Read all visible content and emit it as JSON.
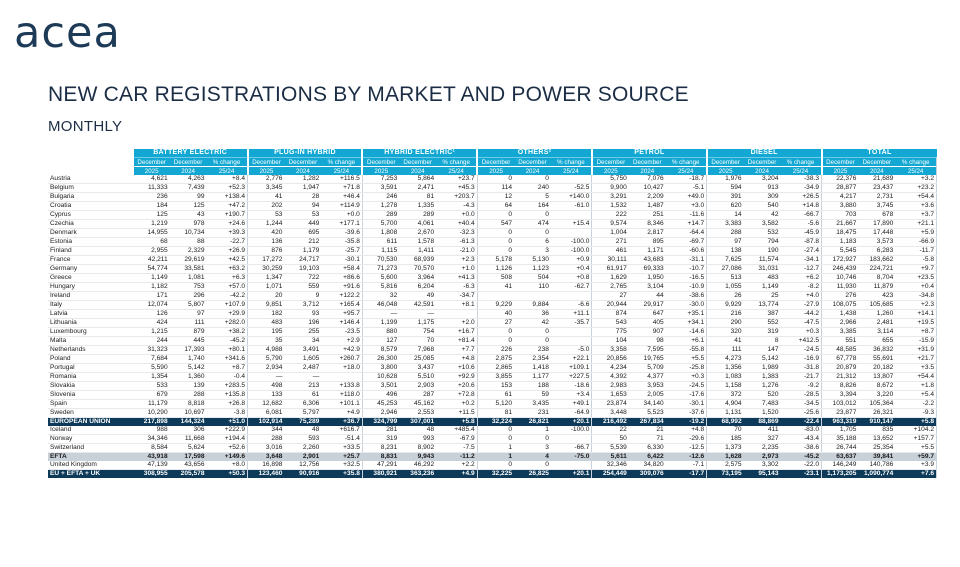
{
  "header": {
    "logo_text": "acea",
    "title": "NEW CAR REGISTRATIONS BY MARKET AND POWER SOURCE",
    "subtitle": "MONTHLY"
  },
  "colors": {
    "header_blue": "#12a8d3",
    "navy": "#0d3a58",
    "efta_grey": "#c8d0d8"
  },
  "groups": [
    {
      "label": "BATTERY ELECTRIC"
    },
    {
      "label": "PLUG-IN HYBRID"
    },
    {
      "label": "HYBRID ELECTRIC¹"
    },
    {
      "label": "OTHERS²"
    },
    {
      "label": "PETROL"
    },
    {
      "label": "DIESEL"
    },
    {
      "label": "TOTAL"
    }
  ],
  "subheaders": {
    "month": "December",
    "pct": "% change",
    "y1": "2025",
    "y2": "2024",
    "range": "25/24"
  },
  "rows": [
    {
      "country": "Austria",
      "v": [
        "4,621",
        "4,263",
        "+8.4",
        "2,776",
        "1,282",
        "+116.5",
        "7,253",
        "5,864",
        "+23.7",
        "0",
        "0",
        "",
        "5,750",
        "7,076",
        "-18.7",
        "1,976",
        "3,204",
        "-38.3",
        "22,376",
        "21,689",
        "+3.2"
      ]
    },
    {
      "country": "Belgium",
      "v": [
        "11,333",
        "7,439",
        "+52.3",
        "3,345",
        "1,947",
        "+71.8",
        "3,591",
        "2,471",
        "+45.3",
        "114",
        "240",
        "-52.5",
        "9,900",
        "10,427",
        "-5.1",
        "594",
        "913",
        "-34.9",
        "28,877",
        "23,437",
        "+23.2"
      ]
    },
    {
      "country": "Bulgaria",
      "v": [
        "236",
        "99",
        "+138.4",
        "41",
        "28",
        "+46.4",
        "246",
        "81",
        "+203.7",
        "12",
        "5",
        "+140.0",
        "3,291",
        "2,209",
        "+49.0",
        "391",
        "309",
        "+26.5",
        "4,217",
        "2,731",
        "+54.4"
      ]
    },
    {
      "country": "Croatia",
      "v": [
        "184",
        "125",
        "+47.2",
        "202",
        "94",
        "+114.9",
        "1,278",
        "1,335",
        "-4.3",
        "64",
        "164",
        "-61.0",
        "1,532",
        "1,487",
        "+3.0",
        "620",
        "540",
        "+14.8",
        "3,880",
        "3,745",
        "+3.6"
      ]
    },
    {
      "country": "Cyprus",
      "v": [
        "125",
        "43",
        "+190.7",
        "53",
        "53",
        "+0.0",
        "289",
        "289",
        "+0.0",
        "0",
        "0",
        "",
        "222",
        "251",
        "-11.6",
        "14",
        "42",
        "-66.7",
        "703",
        "678",
        "+3.7"
      ]
    },
    {
      "country": "Czechia",
      "v": [
        "1,219",
        "978",
        "+24.6",
        "1,244",
        "449",
        "+177.1",
        "5,700",
        "4,061",
        "+40.4",
        "547",
        "474",
        "+15.4",
        "9,574",
        "8,346",
        "+14.7",
        "3,383",
        "3,582",
        "-5.6",
        "21,667",
        "17,890",
        "+21.1"
      ]
    },
    {
      "country": "Denmark",
      "v": [
        "14,955",
        "10,734",
        "+39.3",
        "420",
        "695",
        "-39.6",
        "1,808",
        "2,670",
        "-32.3",
        "0",
        "0",
        "",
        "1,004",
        "2,817",
        "-64.4",
        "288",
        "532",
        "-45.9",
        "18,475",
        "17,448",
        "+5.9"
      ]
    },
    {
      "country": "Estonia",
      "v": [
        "68",
        "88",
        "-22.7",
        "136",
        "212",
        "-35.8",
        "611",
        "1,578",
        "-61.3",
        "0",
        "6",
        "-100.0",
        "271",
        "895",
        "-69.7",
        "97",
        "794",
        "-87.8",
        "1,183",
        "3,573",
        "-66.9"
      ]
    },
    {
      "country": "Finland",
      "v": [
        "2,955",
        "2,329",
        "+26.9",
        "876",
        "1,179",
        "-25.7",
        "1,115",
        "1,411",
        "-21.0",
        "0",
        "3",
        "-100.0",
        "461",
        "1,171",
        "-60.6",
        "138",
        "190",
        "-27.4",
        "5,545",
        "6,283",
        "-11.7"
      ]
    },
    {
      "country": "France",
      "v": [
        "42,211",
        "29,619",
        "+42.5",
        "17,272",
        "24,717",
        "-30.1",
        "70,530",
        "68,939",
        "+2.3",
        "5,178",
        "5,130",
        "+0.9",
        "30,111",
        "43,683",
        "-31.1",
        "7,625",
        "11,574",
        "-34.1",
        "172,927",
        "183,662",
        "-5.8"
      ]
    },
    {
      "country": "Germany",
      "v": [
        "54,774",
        "33,581",
        "+63.2",
        "30,259",
        "19,103",
        "+58.4",
        "71,273",
        "70,570",
        "+1.0",
        "1,126",
        "1,123",
        "+0.4",
        "61,917",
        "69,333",
        "-10.7",
        "27,086",
        "31,031",
        "-12.7",
        "246,439",
        "224,721",
        "+9.7"
      ]
    },
    {
      "country": "Greece",
      "v": [
        "1,149",
        "1,081",
        "+6.3",
        "1,347",
        "722",
        "+86.6",
        "5,600",
        "3,964",
        "+41.3",
        "508",
        "504",
        "+0.8",
        "1,629",
        "1,950",
        "-16.5",
        "513",
        "483",
        "+6.2",
        "10,746",
        "8,704",
        "+23.5"
      ]
    },
    {
      "country": "Hungary",
      "v": [
        "1,182",
        "753",
        "+57.0",
        "1,071",
        "559",
        "+91.6",
        "5,816",
        "6,204",
        "-6.3",
        "41",
        "110",
        "-62.7",
        "2,765",
        "3,104",
        "-10.9",
        "1,055",
        "1,149",
        "-8.2",
        "11,930",
        "11,879",
        "+0.4"
      ]
    },
    {
      "country": "Ireland",
      "v": [
        "171",
        "296",
        "-42.2",
        "20",
        "9",
        "+122.2",
        "32",
        "49",
        "-34.7",
        "",
        "",
        "",
        "27",
        "44",
        "-38.6",
        "26",
        "25",
        "+4.0",
        "276",
        "423",
        "-34.8"
      ]
    },
    {
      "country": "Italy",
      "v": [
        "12,074",
        "5,807",
        "+107.9",
        "9,851",
        "3,712",
        "+165.4",
        "46,048",
        "42,591",
        "+8.1",
        "9,229",
        "9,884",
        "-6.6",
        "20,944",
        "29,917",
        "-30.0",
        "9,929",
        "13,774",
        "-27.9",
        "108,075",
        "105,685",
        "+2.3"
      ]
    },
    {
      "country": "Latvia",
      "v": [
        "126",
        "97",
        "+29.9",
        "182",
        "93",
        "+95.7",
        "—",
        "—",
        "",
        "40",
        "36",
        "+11.1",
        "874",
        "647",
        "+35.1",
        "216",
        "387",
        "-44.2",
        "1,438",
        "1,260",
        "+14.1"
      ]
    },
    {
      "country": "Lithuania",
      "v": [
        "424",
        "111",
        "+282.0",
        "483",
        "196",
        "+146.4",
        "1,199",
        "1,175",
        "+2.0",
        "27",
        "42",
        "-35.7",
        "543",
        "405",
        "+34.1",
        "290",
        "552",
        "-47.5",
        "2,966",
        "2,481",
        "+19.5"
      ]
    },
    {
      "country": "Luxembourg",
      "v": [
        "1,215",
        "879",
        "+38.2",
        "195",
        "255",
        "-23.5",
        "880",
        "754",
        "+16.7",
        "0",
        "0",
        "",
        "775",
        "907",
        "-14.6",
        "320",
        "319",
        "+0.3",
        "3,385",
        "3,114",
        "+8.7"
      ]
    },
    {
      "country": "Malta",
      "v": [
        "244",
        "445",
        "-45.2",
        "35",
        "34",
        "+2.9",
        "127",
        "70",
        "+81.4",
        "0",
        "0",
        "",
        "104",
        "98",
        "+6.1",
        "41",
        "8",
        "+412.5",
        "551",
        "655",
        "-15.9"
      ]
    },
    {
      "country": "Netherlands",
      "v": [
        "31,323",
        "17,393",
        "+80.1",
        "4,988",
        "3,491",
        "+42.9",
        "8,579",
        "7,968",
        "+7.7",
        "226",
        "238",
        "-5.0",
        "3,358",
        "7,595",
        "-55.8",
        "111",
        "147",
        "-24.5",
        "48,585",
        "36,832",
        "+31.9"
      ]
    },
    {
      "country": "Poland",
      "v": [
        "7,684",
        "1,740",
        "+341.6",
        "5,790",
        "1,605",
        "+260.7",
        "26,300",
        "25,085",
        "+4.8",
        "2,875",
        "2,354",
        "+22.1",
        "20,856",
        "19,765",
        "+5.5",
        "4,273",
        "5,142",
        "-16.9",
        "67,778",
        "55,691",
        "+21.7"
      ]
    },
    {
      "country": "Portugal",
      "v": [
        "5,590",
        "5,142",
        "+8.7",
        "2,934",
        "2,487",
        "+18.0",
        "3,800",
        "3,437",
        "+10.6",
        "2,865",
        "1,418",
        "+109.1",
        "4,234",
        "5,709",
        "-25.8",
        "1,356",
        "1,989",
        "-31.8",
        "20,879",
        "20,182",
        "+3.5"
      ]
    },
    {
      "country": "Romania",
      "v": [
        "1,354",
        "1,360",
        "-0.4",
        "—",
        "—",
        "",
        "10,628",
        "5,510",
        "+92.9",
        "3,855",
        "1,177",
        "+227.5",
        "4,392",
        "4,377",
        "+0.3",
        "1,083",
        "1,383",
        "-21.7",
        "21,312",
        "13,807",
        "+54.4"
      ]
    },
    {
      "country": "Slovakia",
      "v": [
        "533",
        "139",
        "+283.5",
        "498",
        "213",
        "+133.8",
        "3,501",
        "2,903",
        "+20.6",
        "153",
        "188",
        "-18.6",
        "2,983",
        "3,953",
        "-24.5",
        "1,158",
        "1,276",
        "-9.2",
        "8,826",
        "8,672",
        "+1.8"
      ]
    },
    {
      "country": "Slovenia",
      "v": [
        "679",
        "288",
        "+135.8",
        "133",
        "61",
        "+118.0",
        "496",
        "287",
        "+72.8",
        "61",
        "59",
        "+3.4",
        "1,653",
        "2,005",
        "-17.6",
        "372",
        "520",
        "-28.5",
        "3,394",
        "3,220",
        "+5.4"
      ]
    },
    {
      "country": "Spain",
      "v": [
        "11,179",
        "8,818",
        "+26.8",
        "12,682",
        "6,306",
        "+101.1",
        "45,253",
        "45,162",
        "+0.2",
        "5,120",
        "3,435",
        "+49.1",
        "23,874",
        "34,140",
        "-30.1",
        "4,904",
        "7,483",
        "-34.5",
        "103,012",
        "105,364",
        "-2.2"
      ]
    },
    {
      "country": "Sweden",
      "v": [
        "10,290",
        "10,697",
        "-3.8",
        "6,081",
        "5,797",
        "+4.9",
        "2,946",
        "2,553",
        "+11.5",
        "81",
        "231",
        "-64.9",
        "3,448",
        "5,523",
        "-37.6",
        "1,131",
        "1,520",
        "-25.6",
        "23,877",
        "26,321",
        "-9.3"
      ]
    }
  ],
  "eu_row": {
    "country": "EUROPEAN UNION",
    "v": [
      "217,898",
      "144,324",
      "+51.0",
      "102,914",
      "75,289",
      "+36.7",
      "324,799",
      "307,001",
      "+5.8",
      "32,224",
      "26,821",
      "+20.1",
      "216,492",
      "267,834",
      "-19.2",
      "68,992",
      "88,869",
      "-22.4",
      "963,319",
      "910,147",
      "+5.8"
    ]
  },
  "efta_rows": [
    {
      "country": "Iceland",
      "v": [
        "988",
        "306",
        "+222.9",
        "344",
        "48",
        "+616.7",
        "281",
        "48",
        "+485.4",
        "0",
        "1",
        "-100.0",
        "22",
        "21",
        "+4.8",
        "70",
        "411",
        "-83.0",
        "1,705",
        "835",
        "+104.2"
      ]
    },
    {
      "country": "Norway",
      "v": [
        "34,346",
        "11,668",
        "+194.4",
        "288",
        "593",
        "-51.4",
        "319",
        "993",
        "-67.9",
        "0",
        "0",
        "",
        "50",
        "71",
        "-29.6",
        "185",
        "327",
        "-43.4",
        "35,188",
        "13,652",
        "+157.7"
      ]
    },
    {
      "country": "Switzerland",
      "v": [
        "8,584",
        "5,624",
        "+52.6",
        "3,016",
        "2,260",
        "+33.5",
        "8,231",
        "8,902",
        "-7.5",
        "1",
        "3",
        "-66.7",
        "5,539",
        "6,330",
        "-12.5",
        "1,373",
        "2,235",
        "-38.6",
        "26,744",
        "25,354",
        "+5.5"
      ]
    }
  ],
  "efta_row": {
    "country": "EFTA",
    "v": [
      "43,918",
      "17,598",
      "+149.6",
      "3,648",
      "2,901",
      "+25.7",
      "8,831",
      "9,943",
      "-11.2",
      "1",
      "4",
      "-75.0",
      "5,611",
      "6,422",
      "-12.6",
      "1,628",
      "2,973",
      "-45.2",
      "63,637",
      "39,841",
      "+59.7"
    ]
  },
  "uk_row": {
    "country": "United Kingdom",
    "v": [
      "47,139",
      "43,656",
      "+8.0",
      "16,898",
      "12,756",
      "+32.5",
      "47,291",
      "46,292",
      "+2.2",
      "0",
      "0",
      "",
      "32,346",
      "34,820",
      "-7.1",
      "2,575",
      "3,302",
      "-22.0",
      "146,249",
      "140,786",
      "+3.9"
    ]
  },
  "total_row": {
    "country": "EU + EFTA + UK",
    "v": [
      "308,955",
      "205,578",
      "+50.3",
      "123,460",
      "90,916",
      "+35.8",
      "380,921",
      "363,236",
      "+4.9",
      "32,225",
      "26,825",
      "+20.1",
      "254,449",
      "309,076",
      "-17.7",
      "73,195",
      "95,143",
      "-23.1",
      "1,173,205",
      "1,090,774",
      "+7.6"
    ]
  }
}
